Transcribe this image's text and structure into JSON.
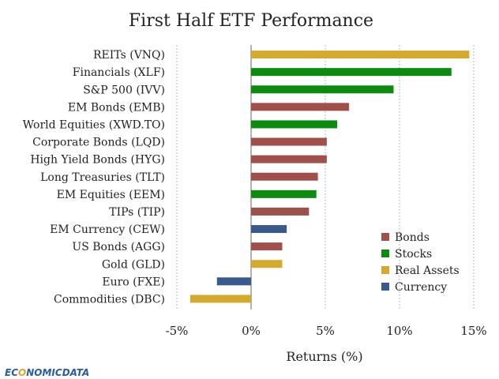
{
  "chart_data": {
    "type": "bar",
    "orientation": "horizontal",
    "title": "First Half ETF Performance",
    "xlabel": "Returns (%)",
    "ylabel": "",
    "xlim": [
      -5,
      15
    ],
    "xticks": [
      -5,
      0,
      5,
      10,
      15
    ],
    "xtick_labels": [
      "-5%",
      "0%",
      "5%",
      "10%",
      "15%"
    ],
    "grid": "vertical dotted",
    "legend_position": "bottom-right",
    "groups": [
      {
        "name": "Bonds",
        "color": "#a0504a"
      },
      {
        "name": "Stocks",
        "color": "#0e8a10"
      },
      {
        "name": "Real Assets",
        "color": "#d4aa2e"
      },
      {
        "name": "Currency",
        "color": "#3b5a8c"
      }
    ],
    "categories": [
      "REITs (VNQ)",
      "Financials (XLF)",
      "S&P 500 (IVV)",
      "EM Bonds (EMB)",
      "World Equities (XWD.TO)",
      "Corporate Bonds (LQD)",
      "High Yield Bonds (HYG)",
      "Long Treasuries (TLT)",
      "EM Equities (EEM)",
      "TIPs (TIP)",
      "EM Currency (CEW)",
      "US Bonds (AGG)",
      "Gold (GLD)",
      "Euro (FXE)",
      "Commodities (DBC)"
    ],
    "values": [
      14.7,
      13.5,
      9.6,
      6.6,
      5.8,
      5.1,
      5.1,
      4.5,
      4.4,
      3.9,
      2.4,
      2.1,
      2.1,
      -2.3,
      -4.1
    ],
    "group_of": [
      "Real Assets",
      "Stocks",
      "Stocks",
      "Bonds",
      "Stocks",
      "Bonds",
      "Bonds",
      "Bonds",
      "Stocks",
      "Bonds",
      "Currency",
      "Bonds",
      "Real Assets",
      "Currency",
      "Real Assets"
    ]
  },
  "logo": {
    "part1": "EC",
    "part2": "O",
    "part3": "NOMIC",
    "part4": "DATA"
  }
}
